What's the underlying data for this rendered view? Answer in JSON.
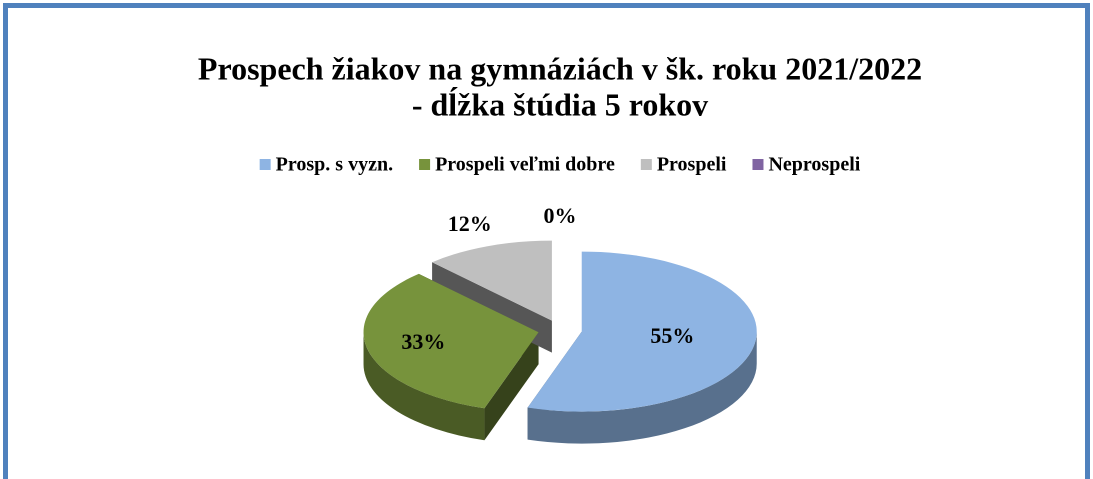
{
  "chart_data": {
    "type": "pie",
    "title": [
      "Prospech žiakov na gymnáziách v šk. roku 2021/2022",
      "- dĺžka štúdia 5 rokov"
    ],
    "categories": [
      "Prosp. s vyzn.",
      "Prospeli veľmi dobre",
      "Prospeli",
      "Neprospeli"
    ],
    "values": [
      55,
      33,
      12,
      0
    ],
    "value_labels": [
      "55%",
      "33%",
      "12%",
      "0%"
    ],
    "colors": [
      "#8eb4e3",
      "#77933c",
      "#bfbfbf",
      "#8064a2"
    ],
    "legend": "top"
  }
}
